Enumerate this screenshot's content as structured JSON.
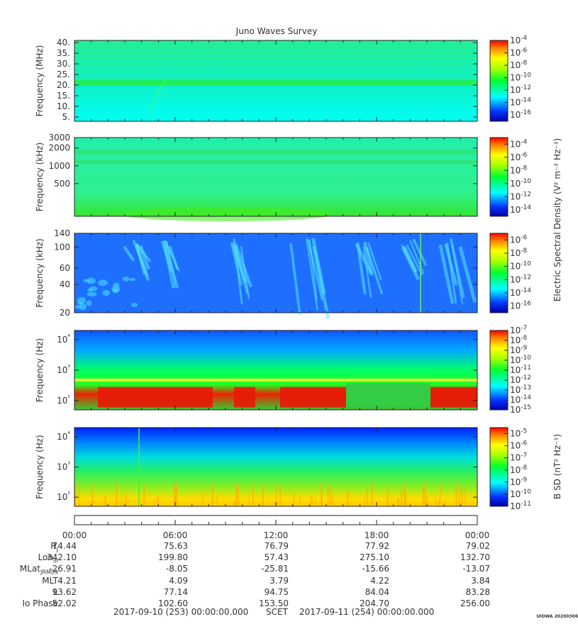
{
  "title": "Juno Waves Survey",
  "watermark": "UIOWA 20200306",
  "time_axis": {
    "ticks": [
      "00:00",
      "06:00",
      "12:00",
      "18:00",
      "00:00"
    ],
    "start_label": "2017-09-10 (253) 00:00:00.000",
    "scet_label": "SCET",
    "end_label": "2017-09-11 (254) 00:00:00.000"
  },
  "ephemeris": [
    {
      "label": "R",
      "sub": "J",
      "values": [
        "74.44",
        "75.63",
        "76.79",
        "77.92",
        "79.02"
      ]
    },
    {
      "label": "Lon",
      "sub": "III",
      "values": [
        "342.10",
        "199.80",
        "57.43",
        "275.10",
        "132.70"
      ]
    },
    {
      "label": "MLat",
      "sub": "JRM09",
      "values": [
        "-26.91",
        "-8.05",
        "-25.81",
        "-15.66",
        "-13.07"
      ]
    },
    {
      "label": "MLT",
      "sub": "",
      "values": [
        "4.21",
        "4.09",
        "3.79",
        "4.22",
        "3.84"
      ]
    },
    {
      "label": "L",
      "sub": "",
      "values": [
        "93.62",
        "77.14",
        "94.75",
        "84.04",
        "83.28"
      ]
    },
    {
      "label": "Io Phase",
      "sub": "",
      "values": [
        "52.02",
        "102.60",
        "153.50",
        "204.70",
        "256.00"
      ]
    }
  ],
  "colorbar_labels": {
    "electric": "Electric Spectral Density (V² m⁻² Hz⁻¹)",
    "magnetic": "B SD (nT² Hz⁻¹)"
  },
  "chart_data": [
    {
      "type": "heatmap",
      "name": "hfr-high",
      "ylabel": "Frequency (MHz)",
      "yscale": "linear",
      "ylim": [
        3,
        41
      ],
      "yticks": [
        5,
        10,
        15,
        20,
        25,
        30,
        35,
        40
      ],
      "yticklabels": [
        "5.",
        "10.",
        "15.",
        "20.",
        "25.",
        "30.",
        "35.",
        "40."
      ],
      "colorbar": {
        "exponents": [
          -4,
          -6,
          -8,
          -10,
          -12,
          -14,
          -16
        ],
        "range": [
          -17,
          -4
        ]
      },
      "features": [
        {
          "kind": "band",
          "center": 21,
          "width": 2,
          "level": -11
        }
      ]
    },
    {
      "type": "heatmap",
      "name": "hfr-low",
      "ylabel": "Frequency (kHz)",
      "yscale": "log",
      "ylim": [
        140,
        3000
      ],
      "yticks": [
        500,
        1000,
        2000,
        3000
      ],
      "yticklabels": [
        "500",
        "1000",
        "2000",
        "3000"
      ],
      "colorbar": {
        "exponents": [
          -4,
          -6,
          -8,
          -10,
          -12,
          -14
        ],
        "range": [
          -15,
          -3
        ]
      },
      "features": [
        {
          "kind": "band",
          "center": 1700,
          "level": -11
        },
        {
          "kind": "band",
          "center": 1150,
          "level": -11
        }
      ]
    },
    {
      "type": "heatmap",
      "name": "lfr-high",
      "ylabel": "Frequency (kHz)",
      "yscale": "log",
      "ylim": [
        20,
        140
      ],
      "yticks": [
        20,
        40,
        60,
        100,
        140
      ],
      "yticklabels": [
        "20",
        "40",
        "60",
        "100",
        "140"
      ],
      "colorbar": {
        "exponents": [
          -6,
          -8,
          -10,
          -12,
          -14,
          -16
        ],
        "range": [
          -17,
          -5
        ]
      }
    },
    {
      "type": "heatmap",
      "name": "lfr-low",
      "ylabel": "Frequency (Hz)",
      "yscale": "log",
      "ylim": [
        50,
        20000
      ],
      "yticks": [
        100,
        1000,
        10000
      ],
      "yticklabels": [
        "10²",
        "10³",
        "10⁴"
      ],
      "colorbar": {
        "exponents": [
          -7,
          -8,
          -9,
          -10,
          -11,
          -12,
          -13,
          -14,
          -15
        ],
        "range": [
          -15,
          -7
        ]
      }
    },
    {
      "type": "heatmap",
      "name": "magnetic",
      "ylabel": "Frequency (Hz)",
      "yscale": "log",
      "ylim": [
        50,
        20000
      ],
      "yticks": [
        100,
        1000,
        10000
      ],
      "yticklabels": [
        "10²",
        "10³",
        "10⁴"
      ],
      "colorbar": {
        "exponents": [
          -5,
          -6,
          -7,
          -8,
          -9,
          -10,
          -11
        ],
        "range": [
          -11,
          -4.5
        ]
      }
    }
  ]
}
